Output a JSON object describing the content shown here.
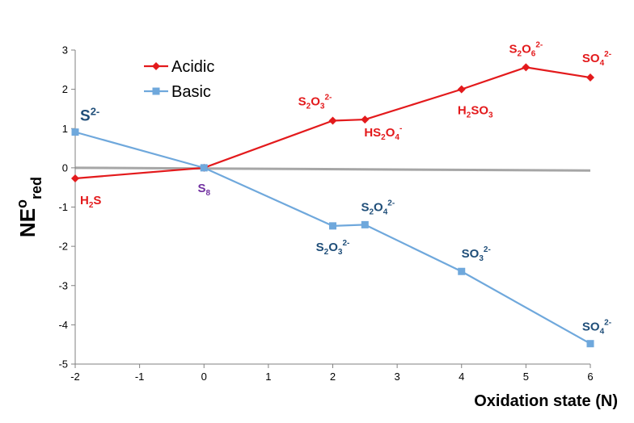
{
  "chart_data": {
    "type": "line",
    "title": "",
    "xlabel": "Oxidation state (N)",
    "ylabel": {
      "main": "NE",
      "sup": "o",
      "sub": "red"
    },
    "xlim": [
      -2,
      6
    ],
    "ylim": [
      -5,
      3
    ],
    "xticks": [
      -2,
      -1,
      0,
      1,
      2,
      3,
      4,
      5,
      6
    ],
    "yticks": [
      -5,
      -4,
      -3,
      -2,
      -1,
      0,
      1,
      2,
      3
    ],
    "legend": {
      "position": "top-left"
    },
    "grid": false,
    "reference_line": {
      "y_start": 0,
      "y_end": -0.07,
      "color": "#a6a6a6"
    },
    "series": [
      {
        "name": "Acidic",
        "color": "#e31a1c",
        "marker": "diamond",
        "points": [
          {
            "x": -2,
            "y": -0.27
          },
          {
            "x": 0,
            "y": 0
          },
          {
            "x": 2,
            "y": 1.2
          },
          {
            "x": 2.5,
            "y": 1.23
          },
          {
            "x": 4,
            "y": 2.0
          },
          {
            "x": 5,
            "y": 2.56
          },
          {
            "x": 6,
            "y": 2.3
          }
        ]
      },
      {
        "name": "Basic",
        "color": "#6fa8dc",
        "marker": "square",
        "points": [
          {
            "x": -2,
            "y": 0.91
          },
          {
            "x": 0,
            "y": 0
          },
          {
            "x": 2,
            "y": -1.48
          },
          {
            "x": 2.5,
            "y": -1.45
          },
          {
            "x": 4,
            "y": -2.64
          },
          {
            "x": 6,
            "y": -4.48
          }
        ]
      }
    ],
    "annotations": [
      {
        "series": "Acidic",
        "x": -2,
        "y": -0.27,
        "parts": [
          [
            "H"
          ],
          [
            "2",
            "sub"
          ],
          [
            "S"
          ]
        ]
      },
      {
        "series": "Acidic",
        "x": 2,
        "y": 1.2,
        "parts": [
          [
            "S"
          ],
          [
            "2",
            "sub"
          ],
          [
            "O"
          ],
          [
            "3",
            "sub"
          ],
          [
            "2-",
            "sup"
          ]
        ]
      },
      {
        "series": "Acidic",
        "x": 2.5,
        "y": 1.23,
        "parts": [
          [
            "HS"
          ],
          [
            "2",
            "sub"
          ],
          [
            "O"
          ],
          [
            "4",
            "sub"
          ],
          [
            "-",
            "sup"
          ]
        ]
      },
      {
        "series": "Acidic",
        "x": 4,
        "y": 2.0,
        "parts": [
          [
            "H"
          ],
          [
            "2",
            "sub"
          ],
          [
            "SO"
          ],
          [
            "3",
            "sub"
          ]
        ]
      },
      {
        "series": "Acidic",
        "x": 5,
        "y": 2.56,
        "parts": [
          [
            "S"
          ],
          [
            "2",
            "sub"
          ],
          [
            "O"
          ],
          [
            "6",
            "sub"
          ],
          [
            "2-",
            "sup"
          ]
        ]
      },
      {
        "series": "Acidic",
        "x": 6,
        "y": 2.3,
        "parts": [
          [
            "SO"
          ],
          [
            "4",
            "sub"
          ],
          [
            "2-",
            "sup"
          ]
        ]
      },
      {
        "series": "Basic",
        "x": -2,
        "y": 0.91,
        "parts": [
          [
            "S"
          ],
          [
            "2-",
            "sup"
          ]
        ]
      },
      {
        "series": "Basic",
        "x": 0,
        "y": 0,
        "parts": [
          [
            "S"
          ],
          [
            "8",
            "sub"
          ]
        ]
      },
      {
        "series": "Basic",
        "x": 2,
        "y": -1.48,
        "parts": [
          [
            "S"
          ],
          [
            "2",
            "sub"
          ],
          [
            "O"
          ],
          [
            "3",
            "sub"
          ],
          [
            "2-",
            "sup"
          ]
        ]
      },
      {
        "series": "Basic",
        "x": 2.5,
        "y": -1.45,
        "parts": [
          [
            "S"
          ],
          [
            "2",
            "sub"
          ],
          [
            "O"
          ],
          [
            "4",
            "sub"
          ],
          [
            "2-",
            "sup"
          ]
        ]
      },
      {
        "series": "Basic",
        "x": 4,
        "y": -2.64,
        "parts": [
          [
            "SO"
          ],
          [
            "3",
            "sub"
          ],
          [
            "2-",
            "sup"
          ]
        ]
      },
      {
        "series": "Basic",
        "x": 6,
        "y": -4.48,
        "parts": [
          [
            "SO"
          ],
          [
            "4",
            "sub"
          ],
          [
            "2-",
            "sup"
          ]
        ]
      }
    ],
    "colors": {
      "label_acidic": "#e31a1c",
      "label_basic": "#1f4e79",
      "label_s8": "#7030a0",
      "axis": "#808080"
    }
  }
}
